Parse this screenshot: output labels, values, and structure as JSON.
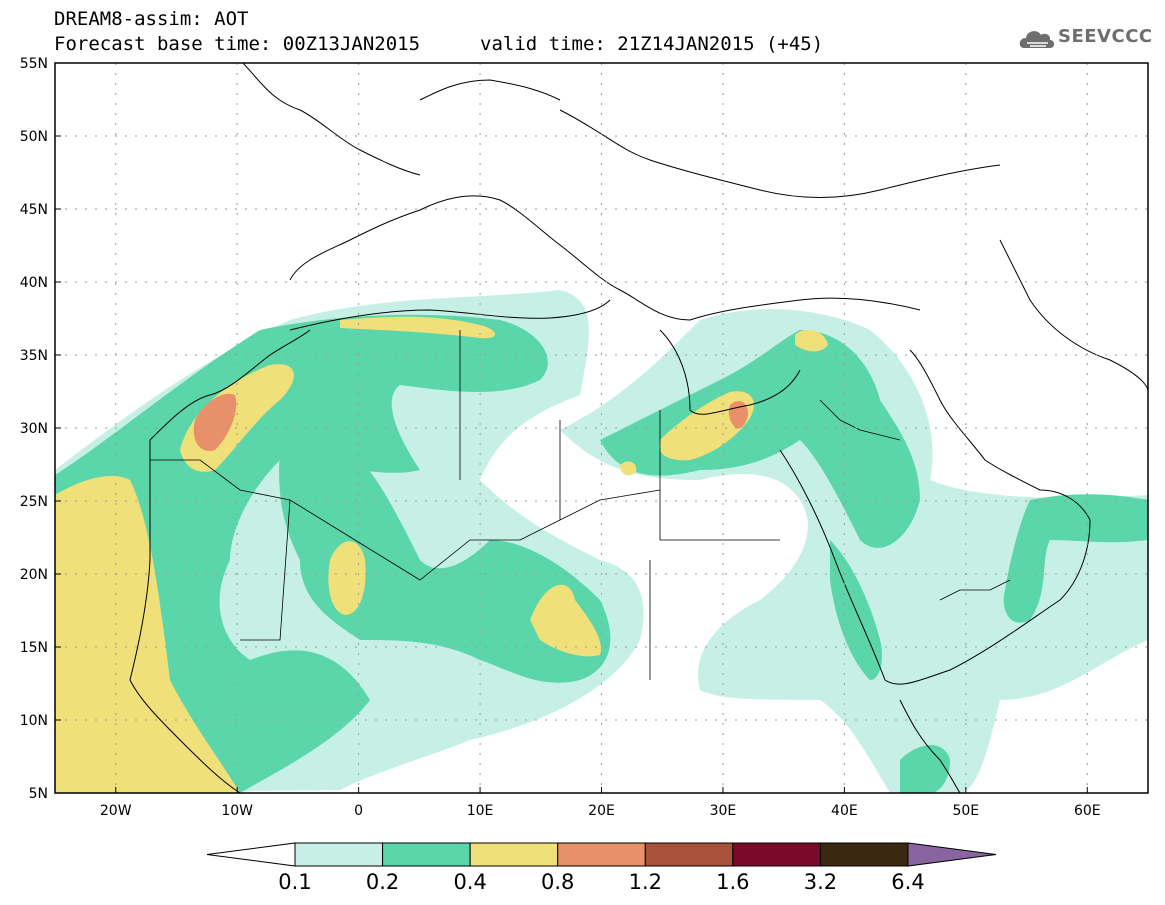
{
  "header": {
    "title": "DREAM8-assim: AOT",
    "base_time": "Forecast base time: 00Z13JAN2015",
    "valid_time": "valid time: 21Z14JAN2015 (+45)"
  },
  "logo": {
    "text": "SEEVCCC",
    "icon": "cloud-icon"
  },
  "map": {
    "lat_labels": [
      "55N",
      "50N",
      "45N",
      "40N",
      "35N",
      "30N",
      "25N",
      "20N",
      "15N",
      "10N",
      "5N"
    ],
    "lon_labels": [
      "20W",
      "10W",
      "0",
      "10E",
      "20E",
      "30E",
      "40E",
      "50E",
      "60E"
    ],
    "lon_range": [
      -25,
      65
    ],
    "lat_range": [
      5,
      55
    ]
  },
  "colorbar": {
    "levels": [
      "0.1",
      "0.2",
      "0.4",
      "0.8",
      "1.2",
      "1.6",
      "3.2",
      "6.4"
    ],
    "colors": [
      "#ffffff",
      "#c6f0e6",
      "#5ad6aa",
      "#f0e07a",
      "#e8906a",
      "#a8523c",
      "#7a0a2a",
      "#3a2810",
      "#8a64a0"
    ]
  }
}
